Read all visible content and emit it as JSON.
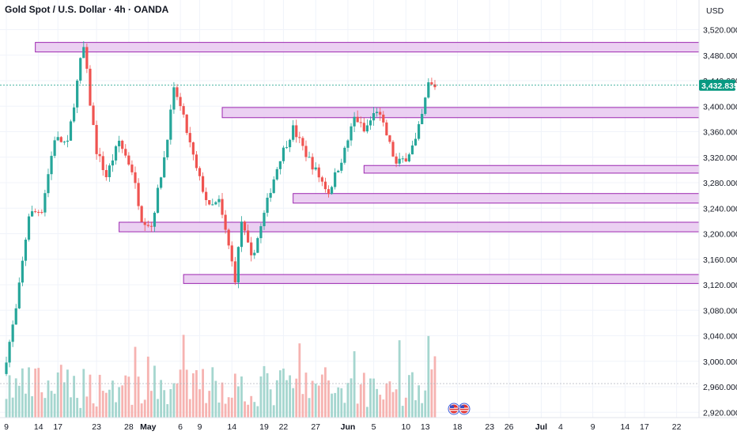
{
  "header": {
    "symbol_title": "Gold Spot / U.S. Dollar · 4h · OANDA",
    "currency": "USD"
  },
  "last_price": "3,432.835",
  "colors": {
    "up": "#26a69a",
    "down": "#ef5350",
    "vol_up": "#a5d6cf",
    "vol_down": "#f6b3b1",
    "zone_fill": "#e8c8f0",
    "zone_stroke": "#9c27b0",
    "price_tag": "#089981",
    "grid": "#f0f3fa"
  },
  "chart_data": {
    "type": "candlestick",
    "title": "Gold Spot / U.S. Dollar · 4h · OANDA",
    "ylabel": "USD",
    "ylim": [
      2910,
      3545
    ],
    "y_ticks": [
      "3,520.000",
      "3,480.000",
      "3,440.000",
      "3,400.000",
      "3,360.000",
      "3,320.000",
      "3,280.000",
      "3,240.000",
      "3,200.000",
      "3,160.000",
      "3,120.000",
      "3,080.000",
      "3,040.000",
      "3,000.000",
      "2,960.000",
      "2,920.000"
    ],
    "y_tick_values": [
      3520,
      3480,
      3440,
      3400,
      3360,
      3320,
      3280,
      3240,
      3200,
      3160,
      3120,
      3080,
      3040,
      3000,
      2960,
      2920
    ],
    "x_ticks": [
      {
        "label": "9",
        "day": 0
      },
      {
        "label": "14",
        "day": 5
      },
      {
        "label": "17",
        "day": 8
      },
      {
        "label": "23",
        "day": 14
      },
      {
        "label": "28",
        "day": 19
      },
      {
        "label": "May",
        "day": 22,
        "bold": true
      },
      {
        "label": "6",
        "day": 27
      },
      {
        "label": "9",
        "day": 30
      },
      {
        "label": "14",
        "day": 35
      },
      {
        "label": "19",
        "day": 40
      },
      {
        "label": "22",
        "day": 43
      },
      {
        "label": "27",
        "day": 48
      },
      {
        "label": "Jun",
        "day": 53,
        "bold": true
      },
      {
        "label": "5",
        "day": 57
      },
      {
        "label": "10",
        "day": 62
      },
      {
        "label": "13",
        "day": 65
      },
      {
        "label": "18",
        "day": 70
      },
      {
        "label": "23",
        "day": 75
      },
      {
        "label": "26",
        "day": 78
      },
      {
        "label": "Jul",
        "day": 83,
        "bold": true
      },
      {
        "label": "4",
        "day": 86
      },
      {
        "label": "9",
        "day": 91
      },
      {
        "label": "14",
        "day": 96
      },
      {
        "label": "17",
        "day": 99
      },
      {
        "label": "22",
        "day": 104
      }
    ],
    "last_price": 3432.835,
    "zones": [
      {
        "day_start": 4.5,
        "low": 3485,
        "high": 3500
      },
      {
        "day_start": 33.5,
        "low": 3382,
        "high": 3398
      },
      {
        "day_start": 55.5,
        "low": 3295,
        "high": 3307
      },
      {
        "day_start": 44.5,
        "low": 3248,
        "high": 3263
      },
      {
        "day_start": 17.5,
        "low": 3203,
        "high": 3218
      },
      {
        "day_start": 27.5,
        "low": 3122,
        "high": 3136
      }
    ],
    "anchors": [
      {
        "day": 0,
        "price": 2980
      },
      {
        "day": 2,
        "price": 3080
      },
      {
        "day": 4,
        "price": 3230
      },
      {
        "day": 6,
        "price": 3238
      },
      {
        "day": 8,
        "price": 3350
      },
      {
        "day": 10,
        "price": 3340
      },
      {
        "day": 12,
        "price": 3470
      },
      {
        "day": 12.6,
        "price": 3495
      },
      {
        "day": 13.3,
        "price": 3420
      },
      {
        "day": 14.5,
        "price": 3330
      },
      {
        "day": 16,
        "price": 3290
      },
      {
        "day": 18,
        "price": 3345
      },
      {
        "day": 20,
        "price": 3300
      },
      {
        "day": 21.5,
        "price": 3225
      },
      {
        "day": 23,
        "price": 3212
      },
      {
        "day": 25,
        "price": 3320
      },
      {
        "day": 26.6,
        "price": 3430
      },
      {
        "day": 28,
        "price": 3380
      },
      {
        "day": 30,
        "price": 3300
      },
      {
        "day": 32,
        "price": 3240
      },
      {
        "day": 33.5,
        "price": 3250
      },
      {
        "day": 35,
        "price": 3180
      },
      {
        "day": 36,
        "price": 3130
      },
      {
        "day": 37,
        "price": 3220
      },
      {
        "day": 38.5,
        "price": 3160
      },
      {
        "day": 40,
        "price": 3210
      },
      {
        "day": 41.5,
        "price": 3270
      },
      {
        "day": 43,
        "price": 3320
      },
      {
        "day": 45,
        "price": 3365
      },
      {
        "day": 47,
        "price": 3325
      },
      {
        "day": 49,
        "price": 3290
      },
      {
        "day": 50.5,
        "price": 3265
      },
      {
        "day": 53,
        "price": 3330
      },
      {
        "day": 54.6,
        "price": 3385
      },
      {
        "day": 56,
        "price": 3360
      },
      {
        "day": 58,
        "price": 3395
      },
      {
        "day": 59.5,
        "price": 3355
      },
      {
        "day": 61,
        "price": 3308
      },
      {
        "day": 62.5,
        "price": 3320
      },
      {
        "day": 64,
        "price": 3345
      },
      {
        "day": 65,
        "price": 3385
      },
      {
        "day": 66,
        "price": 3435
      },
      {
        "day": 66.6,
        "price": 3432
      }
    ]
  }
}
